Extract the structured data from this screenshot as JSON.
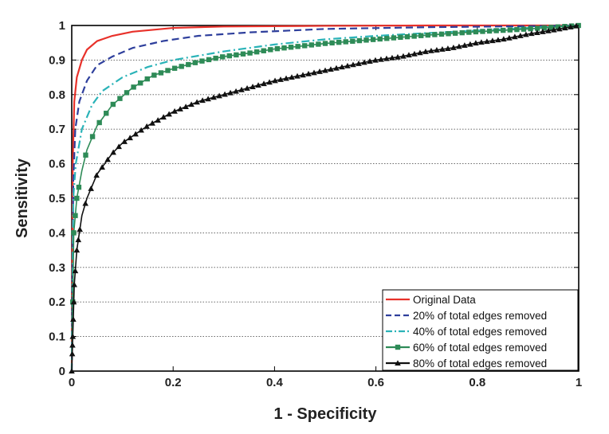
{
  "chart_data": {
    "type": "line",
    "title": "",
    "xlabel": "1 - Specificity",
    "ylabel": "Sensitivity",
    "xlim": [
      0,
      1
    ],
    "ylim": [
      0,
      1
    ],
    "x_ticks": [
      "0",
      "0.2",
      "0.4",
      "0.6",
      "0.8",
      "1"
    ],
    "y_ticks": [
      "0",
      "0.1",
      "0.2",
      "0.3",
      "0.4",
      "0.5",
      "0.6",
      "0.7",
      "0.8",
      "0.9",
      "1"
    ],
    "grid": "horizontal dotted",
    "legend_position": "bottom-right",
    "series": [
      {
        "name": "Original Data",
        "color": "#e8312a",
        "dash": "solid",
        "marker": "none",
        "points": [
          [
            0,
            0
          ],
          [
            0.002,
            0.6
          ],
          [
            0.005,
            0.78
          ],
          [
            0.01,
            0.85
          ],
          [
            0.02,
            0.9
          ],
          [
            0.03,
            0.93
          ],
          [
            0.05,
            0.955
          ],
          [
            0.08,
            0.97
          ],
          [
            0.12,
            0.982
          ],
          [
            0.2,
            0.993
          ],
          [
            0.3,
            0.997
          ],
          [
            0.5,
            0.999
          ],
          [
            0.7,
            1.0
          ],
          [
            1.0,
            1.0
          ]
        ]
      },
      {
        "name": "20% of total edges removed",
        "color": "#2e3f9c",
        "dash": "dashed",
        "marker": "none",
        "points": [
          [
            0,
            0
          ],
          [
            0.003,
            0.55
          ],
          [
            0.007,
            0.7
          ],
          [
            0.015,
            0.78
          ],
          [
            0.03,
            0.84
          ],
          [
            0.05,
            0.885
          ],
          [
            0.08,
            0.91
          ],
          [
            0.12,
            0.935
          ],
          [
            0.18,
            0.955
          ],
          [
            0.25,
            0.97
          ],
          [
            0.35,
            0.98
          ],
          [
            0.5,
            0.99
          ],
          [
            0.7,
            0.995
          ],
          [
            0.9,
            0.998
          ],
          [
            1.0,
            1.0
          ]
        ]
      },
      {
        "name": "40% of total edges removed",
        "color": "#2ab3b8",
        "dash": "dashdot",
        "marker": "none",
        "points": [
          [
            0,
            0
          ],
          [
            0.003,
            0.5
          ],
          [
            0.008,
            0.6
          ],
          [
            0.02,
            0.7
          ],
          [
            0.04,
            0.77
          ],
          [
            0.06,
            0.81
          ],
          [
            0.1,
            0.85
          ],
          [
            0.15,
            0.88
          ],
          [
            0.2,
            0.9
          ],
          [
            0.3,
            0.925
          ],
          [
            0.4,
            0.945
          ],
          [
            0.5,
            0.96
          ],
          [
            0.6,
            0.97
          ],
          [
            0.7,
            0.978
          ],
          [
            0.8,
            0.985
          ],
          [
            0.9,
            0.993
          ],
          [
            1.0,
            1.0
          ]
        ]
      },
      {
        "name": "60% of total edges removed",
        "color": "#2e8b57",
        "dash": "solid",
        "marker": "square",
        "points": [
          [
            0,
            0
          ],
          [
            0.004,
            0.4
          ],
          [
            0.01,
            0.5
          ],
          [
            0.02,
            0.58
          ],
          [
            0.03,
            0.64
          ],
          [
            0.05,
            0.71
          ],
          [
            0.08,
            0.77
          ],
          [
            0.12,
            0.82
          ],
          [
            0.16,
            0.855
          ],
          [
            0.2,
            0.875
          ],
          [
            0.25,
            0.895
          ],
          [
            0.3,
            0.91
          ],
          [
            0.35,
            0.92
          ],
          [
            0.4,
            0.932
          ],
          [
            0.5,
            0.948
          ],
          [
            0.6,
            0.96
          ],
          [
            0.7,
            0.972
          ],
          [
            0.8,
            0.982
          ],
          [
            0.9,
            0.99
          ],
          [
            1.0,
            1.0
          ]
        ]
      },
      {
        "name": "80% of total edges removed",
        "color": "#111111",
        "dash": "solid",
        "marker": "triangle",
        "points": [
          [
            0,
            0
          ],
          [
            0.002,
            0.1
          ],
          [
            0.005,
            0.25
          ],
          [
            0.01,
            0.35
          ],
          [
            0.02,
            0.45
          ],
          [
            0.03,
            0.5
          ],
          [
            0.05,
            0.57
          ],
          [
            0.08,
            0.63
          ],
          [
            0.1,
            0.66
          ],
          [
            0.15,
            0.71
          ],
          [
            0.2,
            0.75
          ],
          [
            0.25,
            0.78
          ],
          [
            0.3,
            0.8
          ],
          [
            0.35,
            0.82
          ],
          [
            0.4,
            0.84
          ],
          [
            0.45,
            0.855
          ],
          [
            0.5,
            0.87
          ],
          [
            0.55,
            0.885
          ],
          [
            0.6,
            0.9
          ],
          [
            0.65,
            0.91
          ],
          [
            0.7,
            0.925
          ],
          [
            0.75,
            0.935
          ],
          [
            0.8,
            0.95
          ],
          [
            0.85,
            0.96
          ],
          [
            0.9,
            0.975
          ],
          [
            0.95,
            0.987
          ],
          [
            1.0,
            1.0
          ]
        ]
      }
    ]
  }
}
